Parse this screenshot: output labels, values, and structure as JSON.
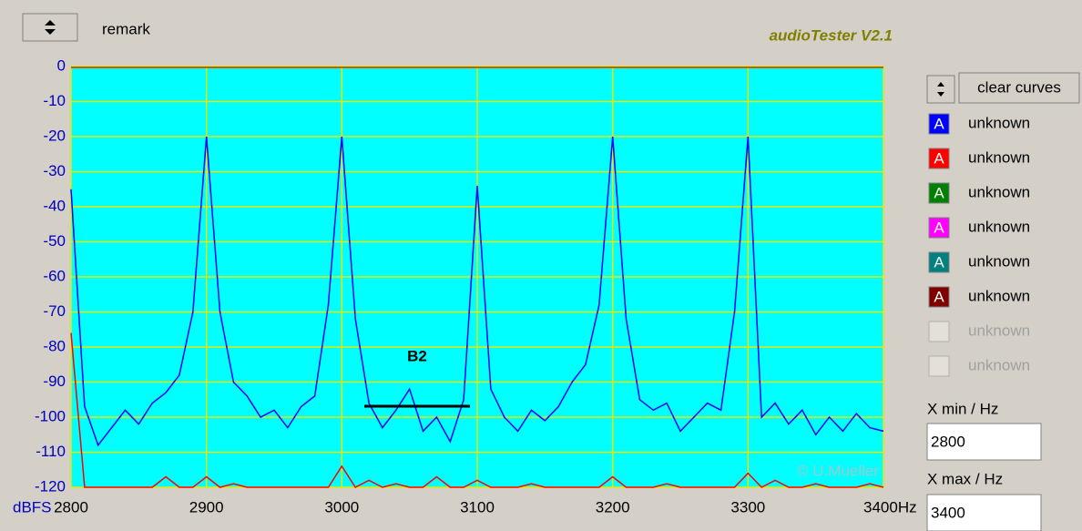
{
  "chart_data": {
    "type": "line",
    "ylabel": "dBFS",
    "x": [
      2800,
      2810,
      2820,
      2830,
      2840,
      2850,
      2860,
      2870,
      2880,
      2890,
      2900,
      2910,
      2920,
      2930,
      2940,
      2950,
      2960,
      2970,
      2980,
      2990,
      3000,
      3010,
      3020,
      3030,
      3040,
      3050,
      3060,
      3070,
      3080,
      3090,
      3100,
      3110,
      3120,
      3130,
      3140,
      3150,
      3160,
      3170,
      3180,
      3190,
      3200,
      3210,
      3220,
      3230,
      3240,
      3250,
      3260,
      3270,
      3280,
      3290,
      3300,
      3310,
      3320,
      3330,
      3340,
      3350,
      3360,
      3370,
      3380,
      3390,
      3400
    ],
    "series": [
      {
        "name": "unknown",
        "color": "#0000ff",
        "values": [
          -35,
          -97,
          -108,
          -103,
          -98,
          -102,
          -96,
          -93,
          -88,
          -70,
          -20,
          -70,
          -90,
          -94,
          -100,
          -98,
          -103,
          -97,
          -94,
          -68,
          -20,
          -72,
          -96,
          -103,
          -98,
          -92,
          -104,
          -100,
          -107,
          -95,
          -34,
          -92,
          -100,
          -104,
          -98,
          -101,
          -97,
          -90,
          -85,
          -68,
          -20,
          -72,
          -95,
          -98,
          -96,
          -104,
          -100,
          -96,
          -98,
          -70,
          -20,
          -100,
          -96,
          -102,
          -98,
          -105,
          -100,
          -104,
          -99,
          -103,
          -104
        ]
      },
      {
        "name": "unknown",
        "color": "#ff0000",
        "values": [
          -76,
          -120,
          -120,
          -120,
          -120,
          -120,
          -120,
          -117,
          -120,
          -120,
          -117,
          -120,
          -119,
          -120,
          -120,
          -120,
          -120,
          -120,
          -120,
          -120,
          -114,
          -120,
          -118,
          -120,
          -119,
          -120,
          -120,
          -117,
          -120,
          -120,
          -118,
          -120,
          -120,
          -120,
          -119,
          -120,
          -120,
          -120,
          -120,
          -120,
          -117,
          -120,
          -120,
          -120,
          -119,
          -120,
          -120,
          -120,
          -120,
          -120,
          -116,
          -120,
          -118,
          -120,
          -120,
          -119,
          -120,
          -120,
          -120,
          -119,
          -120
        ]
      }
    ],
    "xlim": [
      2800,
      3400
    ],
    "ylim": [
      -120,
      0
    ],
    "xticks": [
      2800,
      2900,
      3000,
      3100,
      3200,
      3300,
      {
        "value": 3400,
        "label": "3400Hz"
      }
    ],
    "yticks": [
      0,
      -10,
      -20,
      -30,
      -40,
      -50,
      -60,
      -70,
      -80,
      -90,
      -100,
      -110,
      -120
    ],
    "grid": true,
    "annotation": "B2",
    "watermark": "© U.Mueller"
  },
  "ui": {
    "title": "audioTester V2.1",
    "remark": "remark",
    "clear_button": "clear curves",
    "curves": [
      {
        "icon": "A",
        "name": "unknown",
        "color": "#0000ff",
        "enabled": true
      },
      {
        "icon": "A",
        "name": "unknown",
        "color": "#ff0000",
        "enabled": true
      },
      {
        "icon": "A",
        "name": "unknown",
        "color": "#008000",
        "enabled": true
      },
      {
        "icon": "A",
        "name": "unknown",
        "color": "#ff00ff",
        "enabled": true
      },
      {
        "icon": "A",
        "name": "unknown",
        "color": "#008080",
        "enabled": true
      },
      {
        "icon": "A",
        "name": "unknown",
        "color": "#800000",
        "enabled": true
      },
      {
        "name": "unknown",
        "enabled": false
      },
      {
        "name": "unknown",
        "enabled": false
      }
    ],
    "xmin_label": "X min / Hz",
    "xmin_value": "2800",
    "xmax_label": "X max / Hz",
    "xmax_value": "3400"
  }
}
